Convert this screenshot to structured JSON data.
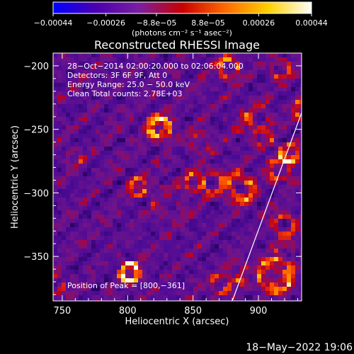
{
  "chart_data": {
    "type": "heatmap",
    "title": "Reconstructed RHESSI Image",
    "xlabel": "Heliocentric X (arcsec)",
    "ylabel": "Heliocentric Y (arcsec)",
    "xlim": [
      743,
      933
    ],
    "ylim": [
      -385,
      -190
    ],
    "x_ticks": [
      750,
      800,
      850,
      900
    ],
    "y_ticks": [
      -200,
      -250,
      -300,
      -350
    ],
    "x_tick_labels": [
      "750",
      "800",
      "850",
      "900"
    ],
    "y_tick_labels": [
      "−200",
      "−250",
      "−300",
      "−350"
    ],
    "colorbar": {
      "range": [
        -0.00044,
        0.00044
      ],
      "ticks": [
        -0.00044,
        -0.00026,
        -8.8e-05,
        8.8e-05,
        0.00026,
        0.00044
      ],
      "tick_labels": [
        "−0.00044",
        "−0.00026",
        "−8.8e−05",
        "8.8e−05",
        "0.00026",
        "0.00044"
      ],
      "unit_label": "(photons cm⁻² s⁻¹ asec⁻²)",
      "colors": [
        "#0000ff",
        "#4b00b0",
        "#7a1fa0",
        "#c80000",
        "#ff6a00",
        "#ffd000",
        "#ffffff"
      ]
    },
    "annotations": [
      "28−Oct−2014 02:00:20.000 to 02:06:04.000",
      "Detectors: 3F 6F 9F, Att 0",
      "Energy Range: 25.0 − 50.0 keV",
      "Clean    Total counts: 2.78E+03"
    ],
    "peak_label": "Position of Peak = [800,−361]",
    "peak": [
      800,
      -361
    ],
    "limb_line": [
      [
        880,
        -385
      ],
      [
        933,
        -237
      ]
    ],
    "timestamp": "18−May−2022 19:06"
  }
}
